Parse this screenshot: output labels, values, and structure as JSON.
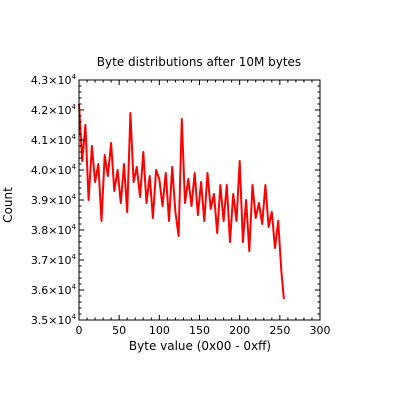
{
  "chart_data": {
    "type": "line",
    "title": "Byte distributions after 10M bytes",
    "xlabel": "Byte value (0x00 - 0xff)",
    "ylabel": "Count",
    "xlim": [
      0,
      300
    ],
    "ylim": [
      35000,
      43000
    ],
    "x_ticks": [
      0,
      50,
      100,
      150,
      200,
      250,
      300
    ],
    "x_tick_labels": [
      "0",
      "50",
      "100",
      "150",
      "200",
      "250",
      "300"
    ],
    "y_ticks": [
      35000,
      36000,
      37000,
      38000,
      39000,
      40000,
      41000,
      42000,
      43000
    ],
    "y_tick_labels": [
      {
        "mantissa": "3.5",
        "base": "×10",
        "exp": "4"
      },
      {
        "mantissa": "3.6",
        "base": "×10",
        "exp": "4"
      },
      {
        "mantissa": "3.7",
        "base": "×10",
        "exp": "4"
      },
      {
        "mantissa": "3.8",
        "base": "×10",
        "exp": "4"
      },
      {
        "mantissa": "3.9",
        "base": "×10",
        "exp": "4"
      },
      {
        "mantissa": "4.0",
        "base": "×10",
        "exp": "4"
      },
      {
        "mantissa": "4.1",
        "base": "×10",
        "exp": "4"
      },
      {
        "mantissa": "4.2",
        "base": "×10",
        "exp": "4"
      },
      {
        "mantissa": "4.3",
        "base": "×10",
        "exp": "4"
      }
    ],
    "grid": false,
    "line_color": "#ff0000",
    "series": [
      {
        "x": [
          0,
          4,
          8,
          12,
          16,
          20,
          24,
          28,
          32,
          36,
          40,
          44,
          48,
          52,
          56,
          60,
          64,
          68,
          72,
          76,
          80,
          84,
          88,
          92,
          96,
          100,
          104,
          108,
          112,
          116,
          120,
          124,
          128,
          132,
          136,
          140,
          144,
          148,
          152,
          156,
          160,
          164,
          168,
          172,
          176,
          180,
          184,
          188,
          192,
          196,
          200,
          204,
          208,
          212,
          216,
          220,
          224,
          228,
          232,
          236,
          240,
          244,
          248,
          252,
          255
        ],
        "y": [
          42200,
          40300,
          41500,
          39000,
          40800,
          39600,
          40200,
          38300,
          40500,
          39800,
          40900,
          39300,
          40000,
          38900,
          40200,
          38600,
          41900,
          39600,
          40100,
          39100,
          40600,
          38900,
          39800,
          38400,
          40000,
          39700,
          38800,
          39900,
          38300,
          40100,
          38600,
          37800,
          41700,
          38900,
          39700,
          38800,
          39900,
          38500,
          39600,
          38300,
          39900,
          38700,
          39200,
          37900,
          39500,
          38300,
          39500,
          37600,
          39200,
          38300,
          40300,
          37600,
          39000,
          37300,
          39500,
          38400,
          38900,
          38200,
          39500,
          38100,
          38600,
          37400,
          38300,
          36600,
          35700
        ]
      }
    ]
  }
}
